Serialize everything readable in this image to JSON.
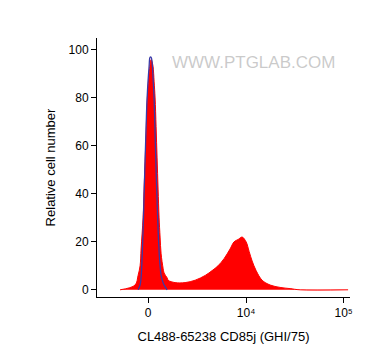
{
  "chart_data": {
    "type": "line",
    "x_label": "CL488-65238 CD85j (GHI/75)",
    "y_label": "Relative cell number",
    "annotations": [
      "WWW.PTGLAB.COM"
    ],
    "log": "x",
    "x": [
      -1428,
      -627,
      -479,
      -382,
      -334,
      -238,
      -190,
      -95,
      -47,
      47,
      95,
      143,
      190,
      238,
      286,
      334,
      382,
      430,
      479,
      528,
      577,
      627,
      727,
      777,
      932,
      985,
      1368,
      1986,
      2717,
      3602,
      4319,
      5026,
      5850,
      6779,
      7474,
      8262,
      9090,
      10000,
      10746,
      11554,
      12706,
      14645,
      17715,
      22402,
      28361,
      35875,
      110900
    ],
    "series": [
      {
        "type": "area",
        "color": "#ff0000",
        "values": [
          0,
          2,
          6,
          10,
          17,
          30,
          42,
          65,
          78,
          90,
          94,
          96,
          95,
          93,
          87,
          80,
          68,
          55,
          42,
          30,
          22,
          15,
          9,
          7,
          5,
          4,
          3,
          3,
          4,
          6,
          8,
          10,
          13,
          17,
          20,
          21,
          22,
          20,
          16,
          12,
          8,
          4,
          2,
          1,
          0.5,
          0,
          0
        ]
      },
      {
        "type": "line",
        "color": "#3a3aa8",
        "values": [
          null,
          null,
          0,
          2,
          5,
          25,
          40,
          68,
          80,
          93,
          97,
          97,
          95,
          88,
          80,
          65,
          50,
          37,
          25,
          16,
          10,
          6,
          3,
          2,
          0,
          null,
          null,
          null,
          null,
          null,
          null,
          null,
          null,
          null,
          null,
          null,
          null,
          null,
          null,
          null,
          null,
          null,
          null,
          null,
          null,
          null,
          null
        ]
      }
    ],
    "xlim": [
      -3050,
      116000
    ],
    "xticks": [
      0,
      {
        "value": 10000,
        "label": "10⁴"
      },
      {
        "value": 100000,
        "label": "10⁵"
      }
    ],
    "ylim": [
      -3,
      105
    ],
    "yticks": [
      0,
      20,
      40,
      60,
      80,
      100
    ],
    "grid": false
  }
}
